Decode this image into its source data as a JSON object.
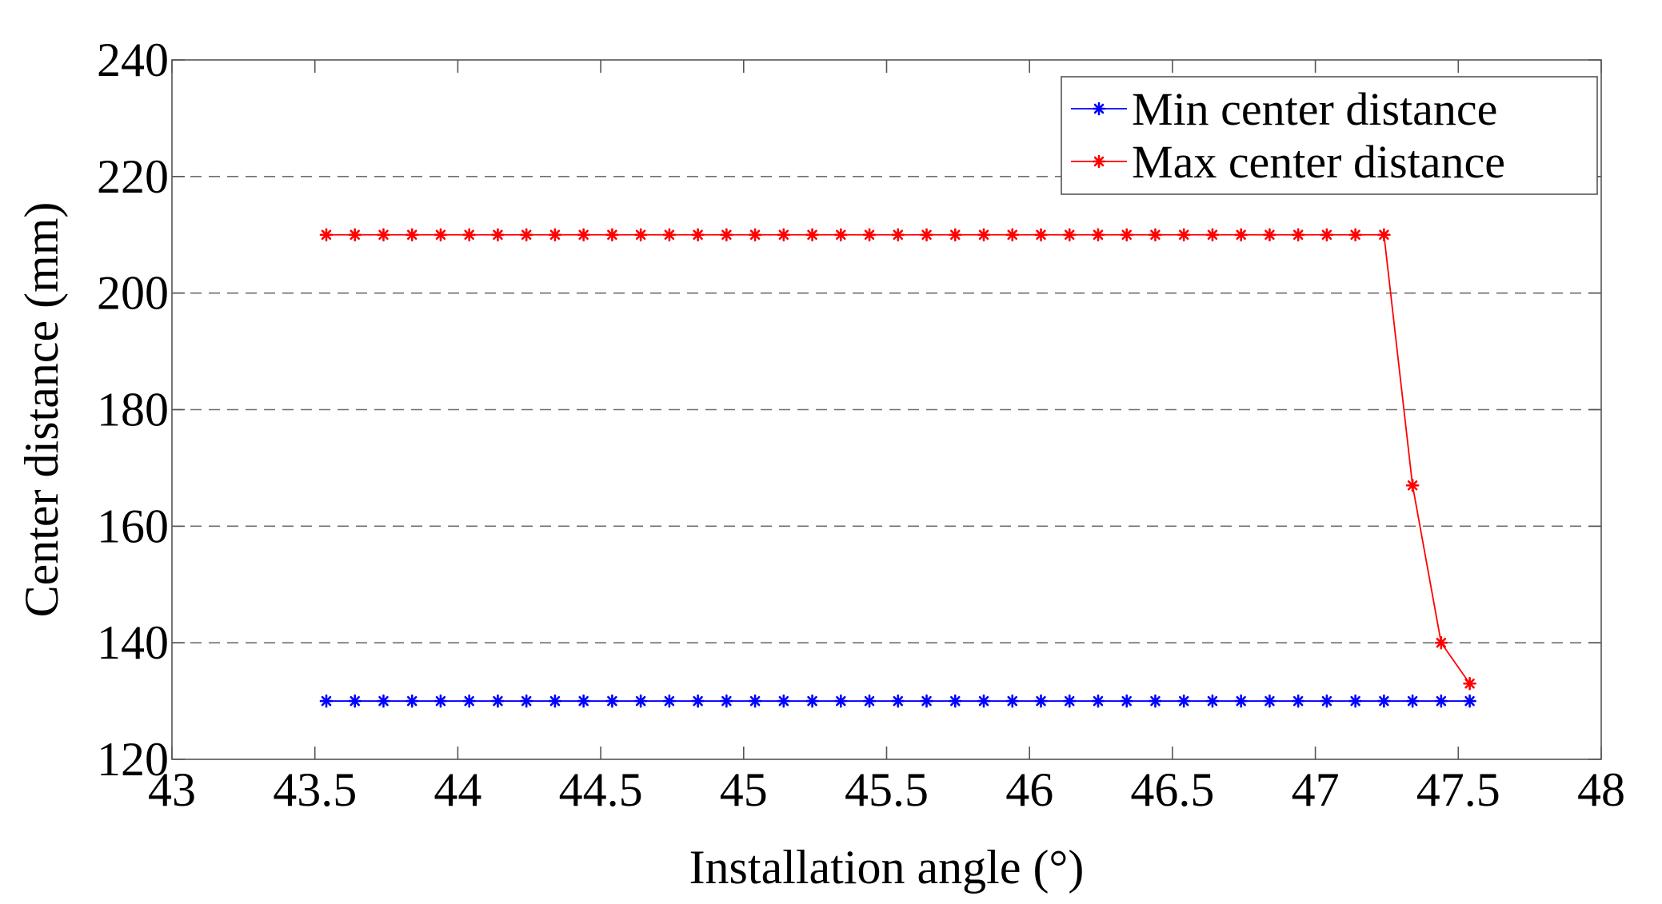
{
  "chart_data": {
    "type": "line",
    "title": "",
    "xlabel": "Installation angle (°)",
    "ylabel": "Center distance (mm)",
    "xlim": [
      43,
      48
    ],
    "ylim": [
      120,
      240
    ],
    "xticks": [
      43,
      43.5,
      44,
      44.5,
      45,
      45.5,
      46,
      46.5,
      47,
      47.5,
      48
    ],
    "xtick_labels": [
      "43",
      "43.5",
      "44",
      "44.5",
      "45",
      "45.5",
      "46",
      "46.5",
      "47",
      "47.5",
      "48"
    ],
    "yticks": [
      120,
      140,
      160,
      180,
      200,
      220,
      240
    ],
    "ytick_labels": [
      "120",
      "140",
      "160",
      "180",
      "200",
      "220",
      "240"
    ],
    "grid": "horizontal-dashed",
    "legend_position": "top-right",
    "x": [
      43.54,
      43.64,
      43.74,
      43.84,
      43.94,
      44.04,
      44.14,
      44.24,
      44.34,
      44.44,
      44.54,
      44.64,
      44.74,
      44.84,
      44.94,
      45.04,
      45.14,
      45.24,
      45.34,
      45.44,
      45.54,
      45.64,
      45.74,
      45.84,
      45.94,
      46.04,
      46.14,
      46.24,
      46.34,
      46.44,
      46.54,
      46.64,
      46.74,
      46.84,
      46.94,
      47.04,
      47.14,
      47.24,
      47.34,
      47.44,
      47.54
    ],
    "series": [
      {
        "name": "Min center distance",
        "color": "#0000ff",
        "marker": "asterisk",
        "values": [
          130,
          130,
          130,
          130,
          130,
          130,
          130,
          130,
          130,
          130,
          130,
          130,
          130,
          130,
          130,
          130,
          130,
          130,
          130,
          130,
          130,
          130,
          130,
          130,
          130,
          130,
          130,
          130,
          130,
          130,
          130,
          130,
          130,
          130,
          130,
          130,
          130,
          130,
          130,
          130,
          130
        ]
      },
      {
        "name": "Max center distance",
        "color": "#ff0000",
        "marker": "asterisk",
        "values": [
          210,
          210,
          210,
          210,
          210,
          210,
          210,
          210,
          210,
          210,
          210,
          210,
          210,
          210,
          210,
          210,
          210,
          210,
          210,
          210,
          210,
          210,
          210,
          210,
          210,
          210,
          210,
          210,
          210,
          210,
          210,
          210,
          210,
          210,
          210,
          210,
          210,
          210,
          167,
          140,
          133
        ]
      }
    ]
  }
}
